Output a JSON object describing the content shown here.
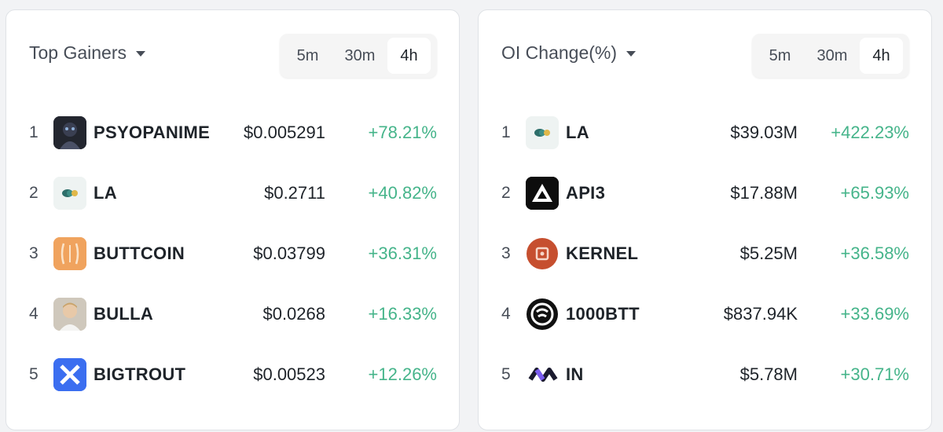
{
  "left_panel": {
    "title": "Top Gainers",
    "timeframes": [
      "5m",
      "30m",
      "4h"
    ],
    "active_timeframe": "4h",
    "rows": [
      {
        "rank": "1",
        "symbol": "PSYOPANIME",
        "price": "$0.005291",
        "change": "+78.21%",
        "icon": "psyopanime-avatar-icon"
      },
      {
        "rank": "2",
        "symbol": "LA",
        "price": "$0.2711",
        "change": "+40.82%",
        "icon": "la-logo-icon"
      },
      {
        "rank": "3",
        "symbol": "BUTTCOIN",
        "price": "$0.03799",
        "change": "+36.31%",
        "icon": "buttcoin-logo-icon"
      },
      {
        "rank": "4",
        "symbol": "BULLA",
        "price": "$0.0268",
        "change": "+16.33%",
        "icon": "bulla-avatar-icon"
      },
      {
        "rank": "5",
        "symbol": "BIGTROUT",
        "price": "$0.00523",
        "change": "+12.26%",
        "icon": "bigtrout-logo-icon"
      }
    ]
  },
  "right_panel": {
    "title": "OI Change(%)",
    "timeframes": [
      "5m",
      "30m",
      "4h"
    ],
    "active_timeframe": "4h",
    "rows": [
      {
        "rank": "1",
        "symbol": "LA",
        "price": "$39.03M",
        "change": "+422.23%",
        "icon": "la-logo-icon"
      },
      {
        "rank": "2",
        "symbol": "API3",
        "price": "$17.88M",
        "change": "+65.93%",
        "icon": "api3-logo-icon"
      },
      {
        "rank": "3",
        "symbol": "KERNEL",
        "price": "$5.25M",
        "change": "+36.58%",
        "icon": "kernel-logo-icon"
      },
      {
        "rank": "4",
        "symbol": "1000BTT",
        "price": "$837.94K",
        "change": "+33.69%",
        "icon": "btt-logo-icon"
      },
      {
        "rank": "5",
        "symbol": "IN",
        "price": "$5.78M",
        "change": "+30.71%",
        "icon": "in-logo-icon"
      }
    ]
  },
  "colors": {
    "positive": "#45b48a",
    "text_primary": "#1e2329",
    "text_secondary": "#474d57"
  }
}
